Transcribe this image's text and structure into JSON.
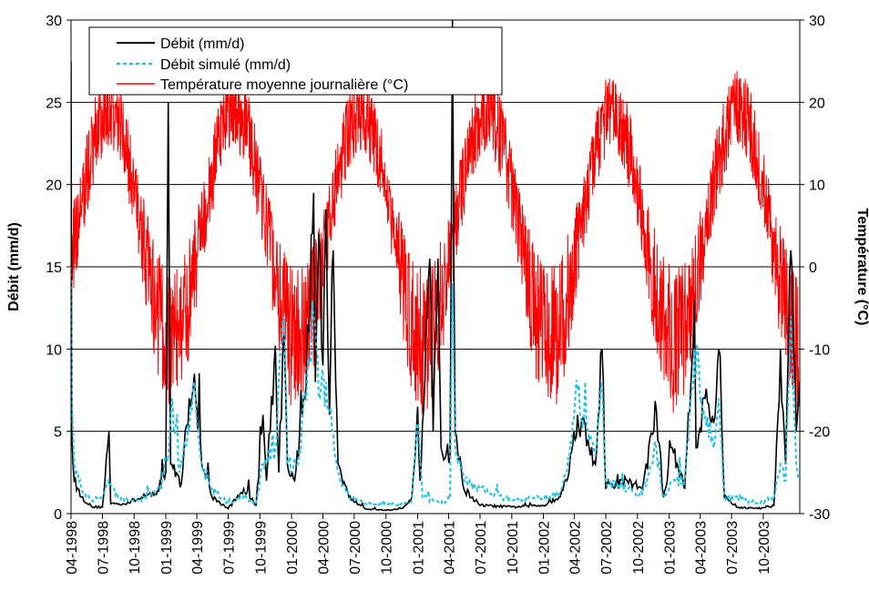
{
  "chart_data": {
    "type": "line",
    "title": "",
    "xlabel": "",
    "ylabel": "Débit (mm/d)",
    "y2label": "Température (°C)",
    "ylim": [
      0,
      30
    ],
    "y2lim": [
      -30,
      30
    ],
    "yticks": [
      "0",
      "5",
      "10",
      "15",
      "20",
      "25",
      "30"
    ],
    "y2ticks": [
      "-30",
      "-20",
      "-10",
      "0",
      "10",
      "20",
      "30"
    ],
    "xlim": [
      "1998-04-01",
      "2004-01-15"
    ],
    "xtick_labels": [
      "04-1998",
      "07-1998",
      "10-1998",
      "01-1999",
      "04-1999",
      "07-1999",
      "10-1999",
      "01-2000",
      "04-2000",
      "07-2000",
      "10-2000",
      "01-2001",
      "04-2001",
      "07-2001",
      "10-2001",
      "01-2002",
      "04-2002",
      "07-2002",
      "10-2002",
      "01-2003",
      "04-2003",
      "07-2003",
      "10-2003"
    ],
    "grid": "horizontal",
    "legend_position": "top-left",
    "series": [
      {
        "name": "Débit (mm/d)",
        "axis": "left",
        "color": "#000000",
        "style": "solid",
        "points": [
          [
            "1998-04-01",
            27.5
          ],
          [
            "1998-04-03",
            5
          ],
          [
            "1998-04-10",
            2
          ],
          [
            "1998-05-01",
            1
          ],
          [
            "1998-06-01",
            0.4
          ],
          [
            "1998-07-01",
            0.4
          ],
          [
            "1998-07-20",
            5
          ],
          [
            "1998-07-25",
            0.6
          ],
          [
            "1998-09-01",
            0.6
          ],
          [
            "1998-10-15",
            0.9
          ],
          [
            "1998-12-01",
            1.2
          ],
          [
            "1999-01-01",
            2.5
          ],
          [
            "1999-01-08",
            25
          ],
          [
            "1999-01-15",
            3
          ],
          [
            "1999-02-15",
            1.8
          ],
          [
            "1999-03-10",
            7
          ],
          [
            "1999-03-25",
            8.5
          ],
          [
            "1999-04-15",
            3
          ],
          [
            "1999-05-15",
            1
          ],
          [
            "1999-07-01",
            0.3
          ],
          [
            "1999-08-15",
            1.5
          ],
          [
            "1999-09-20",
            0.5
          ],
          [
            "1999-10-10",
            6
          ],
          [
            "1999-10-20",
            2
          ],
          [
            "1999-11-15",
            10.2
          ],
          [
            "1999-11-25",
            2.5
          ],
          [
            "1999-12-10",
            11
          ],
          [
            "1999-12-20",
            3
          ],
          [
            "2000-01-10",
            2
          ],
          [
            "2000-02-01",
            6
          ],
          [
            "2000-02-20",
            11
          ],
          [
            "2000-03-05",
            19.5
          ],
          [
            "2000-03-10",
            8
          ],
          [
            "2000-03-20",
            17
          ],
          [
            "2000-04-01",
            9
          ],
          [
            "2000-04-10",
            18.5
          ],
          [
            "2000-04-20",
            6
          ],
          [
            "2000-05-01",
            16
          ],
          [
            "2000-05-15",
            3
          ],
          [
            "2000-06-15",
            1
          ],
          [
            "2000-08-01",
            0.3
          ],
          [
            "2000-10-01",
            0.2
          ],
          [
            "2000-11-15",
            0.3
          ],
          [
            "2000-12-15",
            1
          ],
          [
            "2001-01-01",
            6.5
          ],
          [
            "2001-01-08",
            2
          ],
          [
            "2001-02-05",
            15.5
          ],
          [
            "2001-02-15",
            5
          ],
          [
            "2001-03-01",
            15.5
          ],
          [
            "2001-03-10",
            4
          ],
          [
            "2001-04-05",
            3.5
          ],
          [
            "2001-04-12",
            30
          ],
          [
            "2001-04-20",
            5
          ],
          [
            "2001-05-15",
            1.5
          ],
          [
            "2001-07-01",
            0.5
          ],
          [
            "2001-10-01",
            0.4
          ],
          [
            "2002-01-01",
            0.5
          ],
          [
            "2002-02-15",
            1
          ],
          [
            "2002-03-10",
            2
          ],
          [
            "2002-04-10",
            6
          ],
          [
            "2002-05-10",
            4.5
          ],
          [
            "2002-06-01",
            3
          ],
          [
            "2002-06-20",
            10
          ],
          [
            "2002-07-01",
            1.5
          ],
          [
            "2002-09-01",
            2
          ],
          [
            "2002-10-15",
            1.5
          ],
          [
            "2002-11-25",
            6.3
          ],
          [
            "2002-12-15",
            1
          ],
          [
            "2003-01-10",
            4
          ],
          [
            "2003-02-15",
            1.5
          ],
          [
            "2003-03-15",
            13
          ],
          [
            "2003-03-20",
            4
          ],
          [
            "2003-04-15",
            7
          ],
          [
            "2003-05-10",
            5.5
          ],
          [
            "2003-05-25",
            10
          ],
          [
            "2003-06-10",
            1
          ],
          [
            "2003-07-15",
            0.4
          ],
          [
            "2003-09-15",
            0.3
          ],
          [
            "2003-11-01",
            0.5
          ],
          [
            "2003-11-20",
            10
          ],
          [
            "2003-12-05",
            3
          ],
          [
            "2003-12-20",
            16
          ],
          [
            "2004-01-05",
            5
          ],
          [
            "2004-01-15",
            8
          ]
        ]
      },
      {
        "name": "Débit simulé (mm/d)",
        "axis": "left",
        "color": "#1fc0e8",
        "style": "dashed",
        "points": [
          [
            "1998-04-01",
            15
          ],
          [
            "1998-04-03",
            7
          ],
          [
            "1998-04-10",
            3
          ],
          [
            "1998-05-01",
            1.5
          ],
          [
            "1998-06-01",
            0.8
          ],
          [
            "1998-07-01",
            1
          ],
          [
            "1998-07-20",
            2
          ],
          [
            "1998-08-15",
            1
          ],
          [
            "1998-10-15",
            0.8
          ],
          [
            "1998-12-15",
            1.5
          ],
          [
            "1999-01-10",
            4
          ],
          [
            "1999-01-20",
            7
          ],
          [
            "1999-02-10",
            2.5
          ],
          [
            "1999-03-10",
            5
          ],
          [
            "1999-03-25",
            8
          ],
          [
            "1999-04-15",
            3
          ],
          [
            "1999-05-15",
            1.5
          ],
          [
            "1999-07-01",
            0.6
          ],
          [
            "1999-08-15",
            1
          ],
          [
            "1999-09-20",
            0.6
          ],
          [
            "1999-10-10",
            3
          ],
          [
            "1999-11-15",
            4
          ],
          [
            "1999-12-10",
            12
          ],
          [
            "1999-12-20",
            3
          ],
          [
            "2000-01-20",
            3
          ],
          [
            "2000-02-20",
            9
          ],
          [
            "2000-03-05",
            12
          ],
          [
            "2000-03-20",
            7
          ],
          [
            "2000-04-10",
            8
          ],
          [
            "2000-05-01",
            5
          ],
          [
            "2000-05-15",
            2.5
          ],
          [
            "2000-06-15",
            1
          ],
          [
            "2000-08-01",
            0.6
          ],
          [
            "2000-10-01",
            0.5
          ],
          [
            "2000-11-15",
            0.6
          ],
          [
            "2000-12-15",
            0.8
          ],
          [
            "2001-01-01",
            5.5
          ],
          [
            "2001-01-15",
            1
          ],
          [
            "2001-02-15",
            0.8
          ],
          [
            "2001-03-10",
            0.6
          ],
          [
            "2001-04-05",
            1
          ],
          [
            "2001-04-12",
            14
          ],
          [
            "2001-04-20",
            4
          ],
          [
            "2001-05-15",
            2
          ],
          [
            "2001-07-01",
            1.5
          ],
          [
            "2001-10-01",
            0.8
          ],
          [
            "2002-01-01",
            1
          ],
          [
            "2002-02-15",
            1.2
          ],
          [
            "2002-03-10",
            2.5
          ],
          [
            "2002-04-10",
            7.5
          ],
          [
            "2002-05-10",
            5
          ],
          [
            "2002-06-01",
            3.5
          ],
          [
            "2002-06-20",
            8
          ],
          [
            "2002-07-01",
            2
          ],
          [
            "2002-09-01",
            1.5
          ],
          [
            "2002-10-15",
            1.2
          ],
          [
            "2002-11-25",
            4
          ],
          [
            "2002-12-15",
            1
          ],
          [
            "2003-01-10",
            2
          ],
          [
            "2003-02-15",
            2
          ],
          [
            "2003-03-15",
            10
          ],
          [
            "2003-04-15",
            6
          ],
          [
            "2003-05-10",
            4
          ],
          [
            "2003-05-25",
            7
          ],
          [
            "2003-06-10",
            1
          ],
          [
            "2003-07-15",
            1
          ],
          [
            "2003-09-15",
            0.6
          ],
          [
            "2003-11-01",
            1
          ],
          [
            "2003-11-20",
            3
          ],
          [
            "2003-12-05",
            2
          ],
          [
            "2003-12-20",
            12
          ],
          [
            "2004-01-05",
            3
          ],
          [
            "2004-01-15",
            2
          ]
        ]
      },
      {
        "name": "Température moyenne journalière (°C)",
        "axis": "right",
        "color": "#ff0000",
        "style": "solid",
        "seasonal_model": {
          "mean": 5,
          "amplitude": 14,
          "peak": "07-20",
          "noise": 5
        }
      }
    ]
  }
}
